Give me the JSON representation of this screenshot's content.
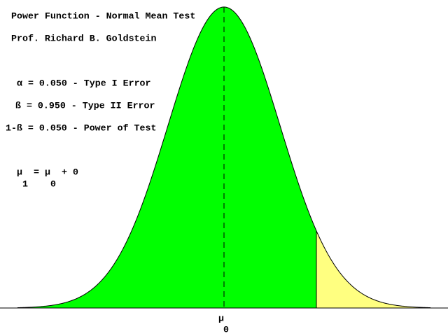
{
  "header": {
    "title": "Power Function - Normal Mean Test",
    "author": "Prof. Richard B. Goldstein"
  },
  "stats": [
    "α = 0.050 - Type I Error",
    "ß = 0.950 - Type II Error",
    "1-ß = 0.050 - Power of Test"
  ],
  "hypothesis": {
    "parts": [
      "μ",
      "=",
      "μ",
      "+ 0"
    ],
    "subscripts": [
      "1",
      "0"
    ]
  },
  "axis": {
    "label": "μ",
    "subscript": "0"
  }
}
